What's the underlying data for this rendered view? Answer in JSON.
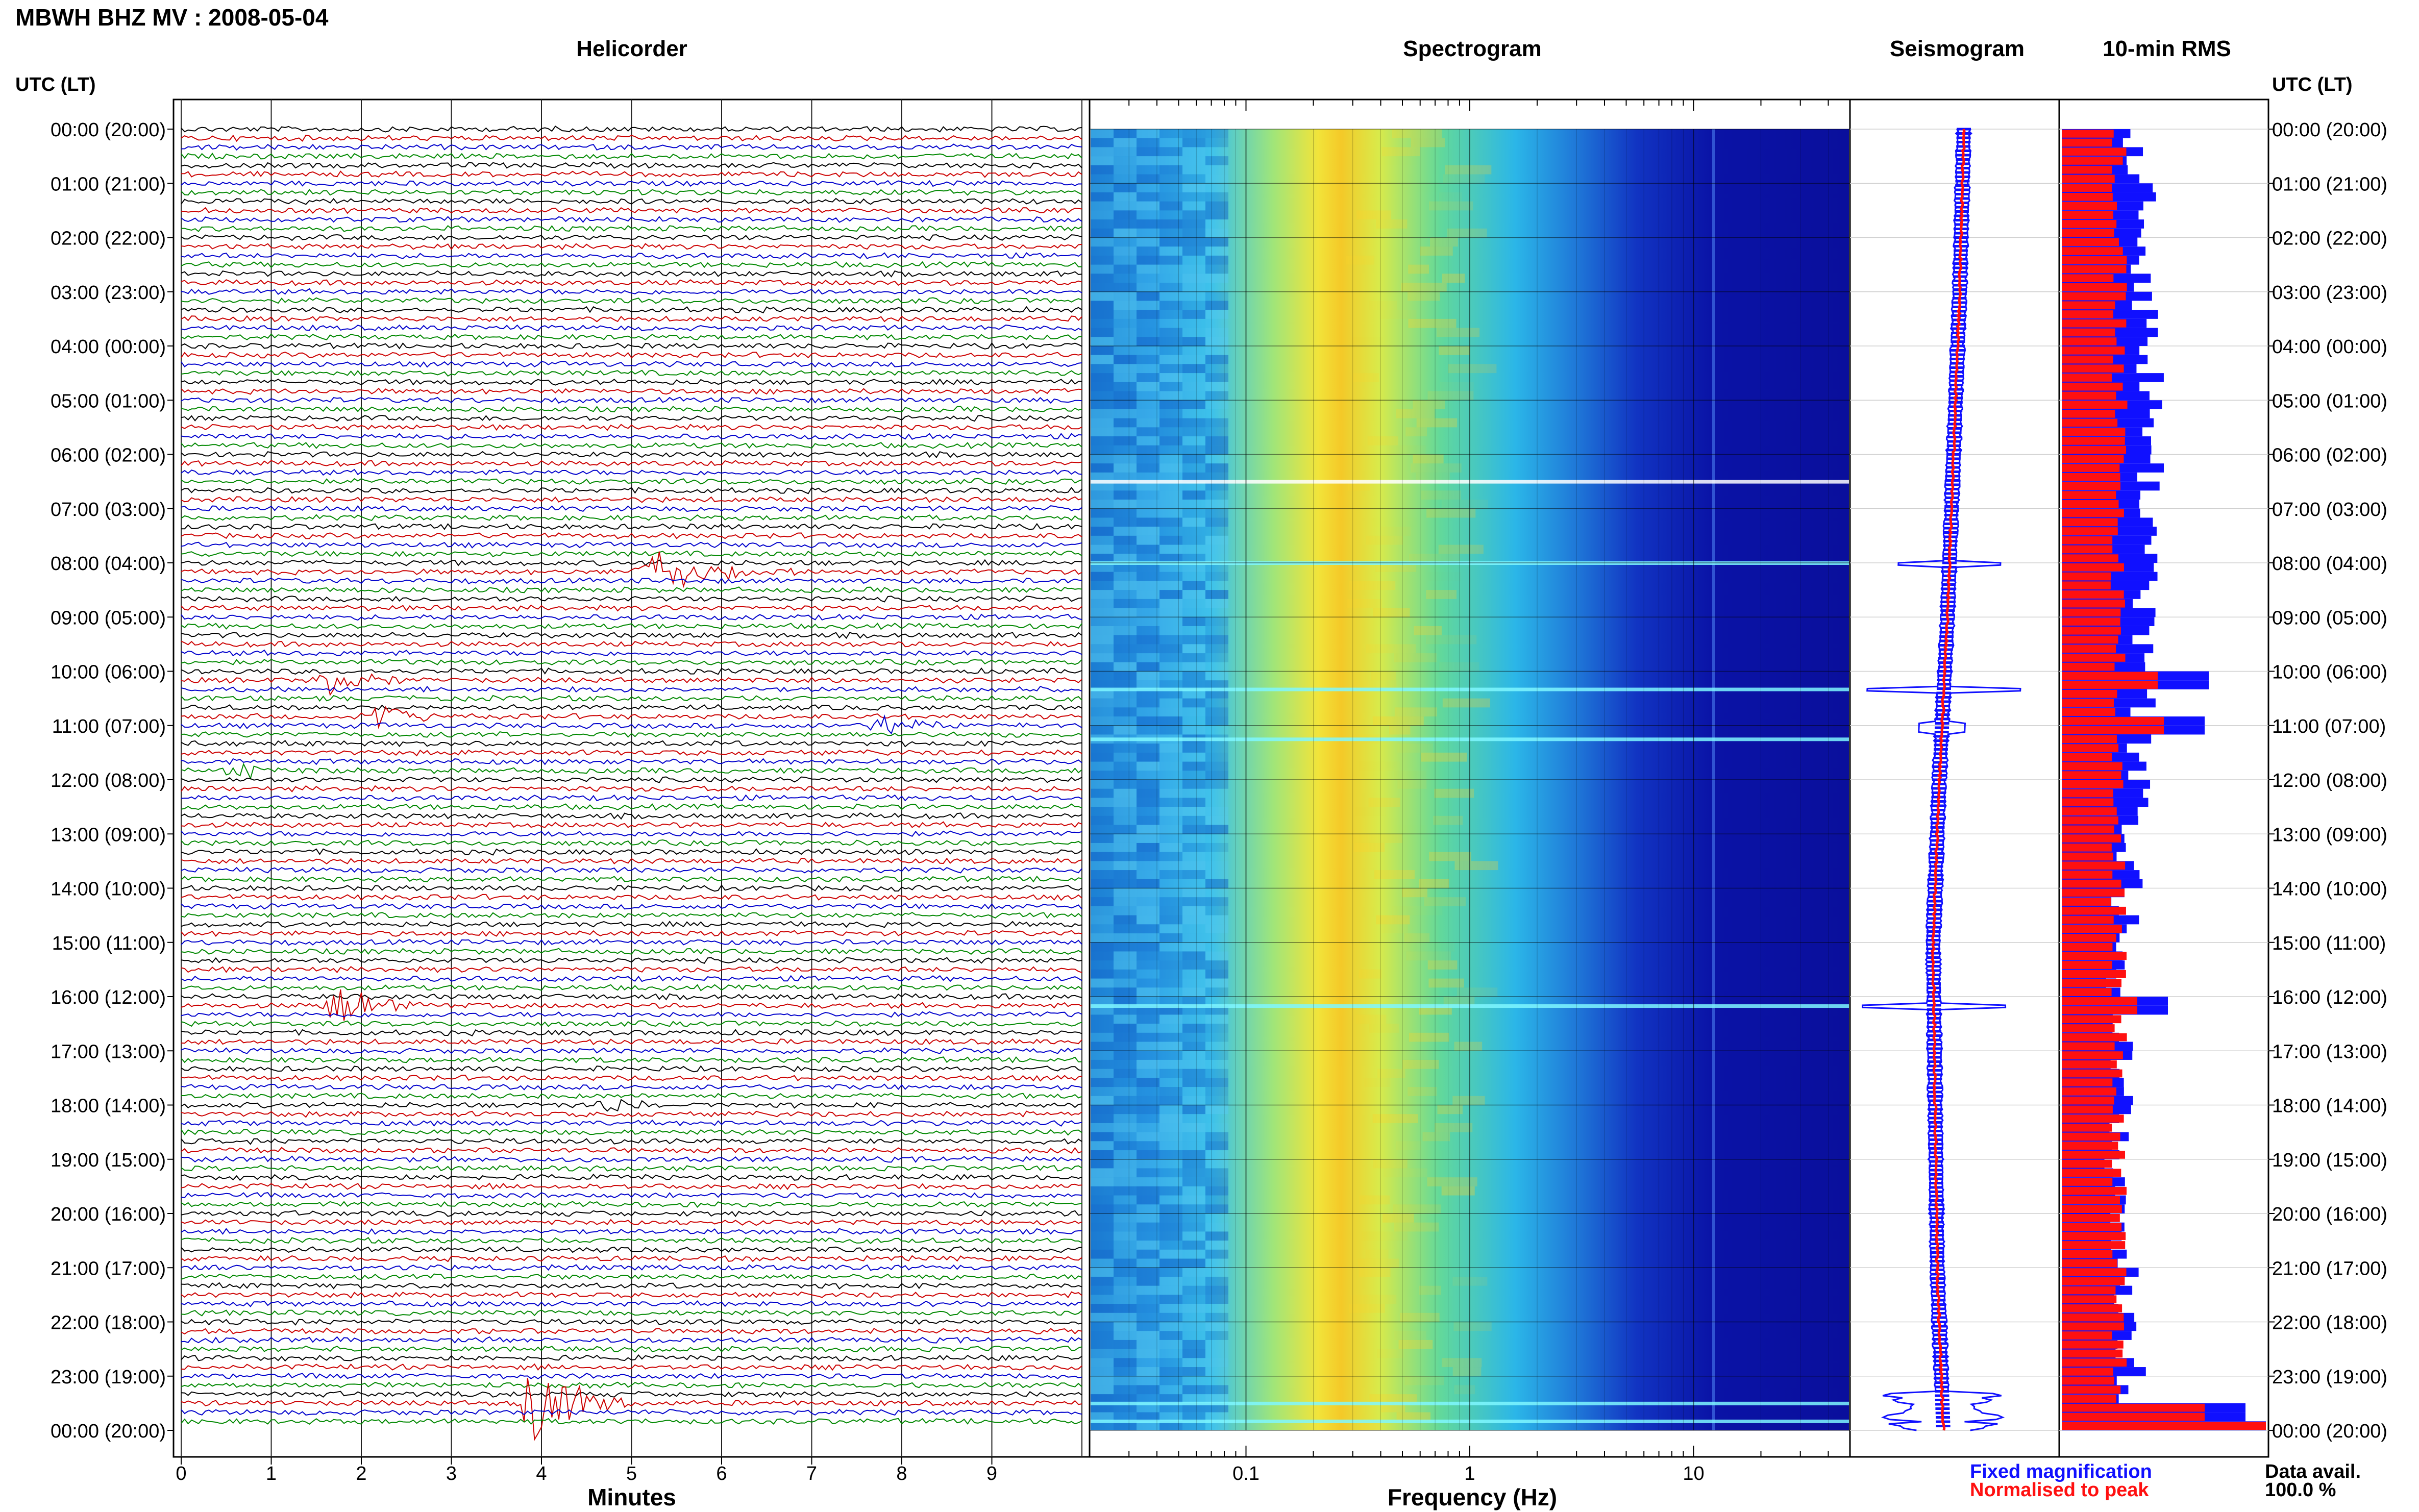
{
  "header": {
    "title": "MBWH BHZ MV : 2008-05-04",
    "utc_label_left": "UTC (LT)",
    "utc_label_right": "UTC (LT)"
  },
  "panels": {
    "helicorder": "Helicorder",
    "spectrogram": "Spectrogram",
    "seismogram": "Seismogram",
    "rms": "10-min RMS"
  },
  "time_labels": [
    "00:00 (20:00)",
    "01:00 (21:00)",
    "02:00 (22:00)",
    "03:00 (23:00)",
    "04:00 (00:00)",
    "05:00 (01:00)",
    "06:00 (02:00)",
    "07:00 (03:00)",
    "08:00 (04:00)",
    "09:00 (05:00)",
    "10:00 (06:00)",
    "11:00 (07:00)",
    "12:00 (08:00)",
    "13:00 (09:00)",
    "14:00 (10:00)",
    "15:00 (11:00)",
    "16:00 (12:00)",
    "17:00 (13:00)",
    "18:00 (14:00)",
    "19:00 (15:00)",
    "20:00 (16:00)",
    "21:00 (17:00)",
    "22:00 (18:00)",
    "23:00 (19:00)",
    "00:00 (20:00)"
  ],
  "x_axes": {
    "minutes_label": "Minutes",
    "minutes_ticks": [
      "0",
      "1",
      "2",
      "3",
      "4",
      "5",
      "6",
      "7",
      "8",
      "9"
    ],
    "frequency_label": "Frequency (Hz)",
    "frequency_ticks": [
      "0.1",
      "1",
      "10"
    ]
  },
  "legend": {
    "fixed": "Fixed magnification",
    "normalised": "Normalised to peak",
    "fixed_color": "#1010ff",
    "normalised_color": "#ff1010"
  },
  "data_avail": {
    "label": "Data avail.",
    "value": "100.0 %"
  },
  "colors": {
    "trace_cycle": [
      "#000000",
      "#cc0000",
      "#0000cc",
      "#008800"
    ],
    "spectro_low": "#00008b",
    "spectro_peak": "#ffff00",
    "rms_fixed": "#1010ff",
    "rms_normalised": "#ff1010"
  },
  "chart_data": [
    {
      "type": "line",
      "panel": "Helicorder",
      "xlabel": "Minutes",
      "x_range": [
        0,
        10
      ],
      "lines_per_hour": 6,
      "hours": 24,
      "events": [
        {
          "hour": 8.17,
          "minute": 5.3,
          "amplitude": 1.2
        },
        {
          "hour": 8.17,
          "minute": 5.95,
          "amplitude": 0.6
        },
        {
          "hour": 10.17,
          "minute": 1.7,
          "amplitude": 0.9
        },
        {
          "hour": 10.83,
          "minute": 2.2,
          "amplitude": 0.6
        },
        {
          "hour": 11.0,
          "minute": 7.8,
          "amplitude": 0.55
        },
        {
          "hour": 11.83,
          "minute": 0.7,
          "amplitude": 0.3
        },
        {
          "hour": 16.17,
          "minute": 1.8,
          "amplitude": 0.9
        },
        {
          "hour": 18.0,
          "minute": 4.7,
          "amplitude": 0.45
        },
        {
          "hour": 23.5,
          "minute": 4.0,
          "amplitude": 2.5
        }
      ]
    },
    {
      "type": "heatmap",
      "panel": "Spectrogram",
      "xlabel": "Frequency (Hz)",
      "x_scale": "log",
      "x_range": [
        0.02,
        50
      ],
      "peak_frequency": 0.25,
      "bright_rows_hour": [
        6.5,
        8.0,
        10.33,
        11.25,
        16.17,
        23.5,
        23.83
      ]
    },
    {
      "type": "line",
      "panel": "Seismogram",
      "series": [
        {
          "name": "Fixed magnification",
          "color": "#1010ff"
        },
        {
          "name": "Normalised to peak",
          "color": "#ff1010"
        }
      ],
      "center_offset": [
        [
          0,
          0.0
        ],
        [
          3,
          -0.02
        ],
        [
          6,
          -0.05
        ],
        [
          9,
          -0.08
        ],
        [
          12,
          -0.12
        ],
        [
          15,
          -0.15
        ],
        [
          18,
          -0.14
        ],
        [
          21,
          -0.13
        ],
        [
          24,
          -0.1
        ]
      ]
    },
    {
      "type": "bar",
      "panel": "10-min RMS",
      "orientation": "horizontal",
      "bins_per_hour": 6,
      "hours": 24,
      "spikes": [
        {
          "hour": 10.17,
          "fixed": 0.72,
          "normalised": 0.47
        },
        {
          "hour": 11.0,
          "fixed": 0.7,
          "normalised": 0.5
        },
        {
          "hour": 16.17,
          "fixed": 0.52,
          "normalised": 0.37
        },
        {
          "hour": 23.67,
          "fixed": 0.9,
          "normalised": 0.7
        },
        {
          "hour": 24.0,
          "fixed": 1.0,
          "normalised": 1.0
        }
      ],
      "baseline_fixed": 0.35,
      "baseline_normalised": 0.28
    }
  ]
}
